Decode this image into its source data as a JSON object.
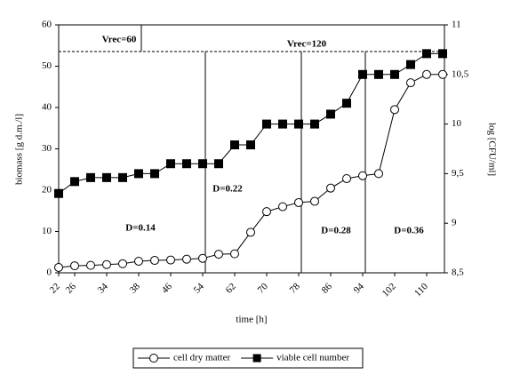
{
  "chart_data": {
    "type": "line",
    "categories": [
      "22",
      "26",
      null,
      "34",
      null,
      "38",
      null,
      "46",
      null,
      "54",
      null,
      "62",
      null,
      "70",
      null,
      "78",
      null,
      "86",
      null,
      "94",
      null,
      "102",
      null,
      "110",
      null
    ],
    "x_label": "time [h]",
    "y_label": "biomass [g d.m./l]",
    "y2_label": "log [CFU/ml]",
    "ylim": [
      0,
      60
    ],
    "yticks": [
      0,
      10,
      20,
      30,
      40,
      50,
      60
    ],
    "y2lim": [
      8.5,
      11
    ],
    "y2ticks": [
      {
        "value": 8.5,
        "label": "8,5"
      },
      9,
      {
        "value": 9.5,
        "label": "9,5"
      },
      10,
      {
        "value": 10.5,
        "label": "10,5"
      },
      11
    ],
    "series": [
      {
        "name": "cell dry matter",
        "color": "#000000",
        "marker": "circle",
        "values": [
          1.3,
          1.7,
          1.8,
          2.0,
          2.2,
          2.8,
          3.0,
          3.1,
          3.3,
          3.5,
          4.5,
          4.6,
          9.8,
          14.8,
          16,
          17,
          17.3,
          20.5,
          22.8,
          23.5,
          24,
          39.5,
          46,
          48,
          48
        ]
      },
      {
        "name": "viable cell number",
        "color": "#000000",
        "marker": "square",
        "axis": "y2",
        "values": [
          9.3,
          9.42,
          9.46,
          9.46,
          9.46,
          9.5,
          9.5,
          9.6,
          9.6,
          9.6,
          9.6,
          9.79,
          9.79,
          10.0,
          10.0,
          10.0,
          10.0,
          10.1,
          10.21,
          10.5,
          10.5,
          10.5,
          10.6,
          10.71,
          10.71
        ]
      }
    ],
    "annotations": [
      "Vrec=60",
      "Vrec=120",
      "D=0.14",
      "D=0.22",
      "D=0.28",
      "D=0.36"
    ]
  }
}
